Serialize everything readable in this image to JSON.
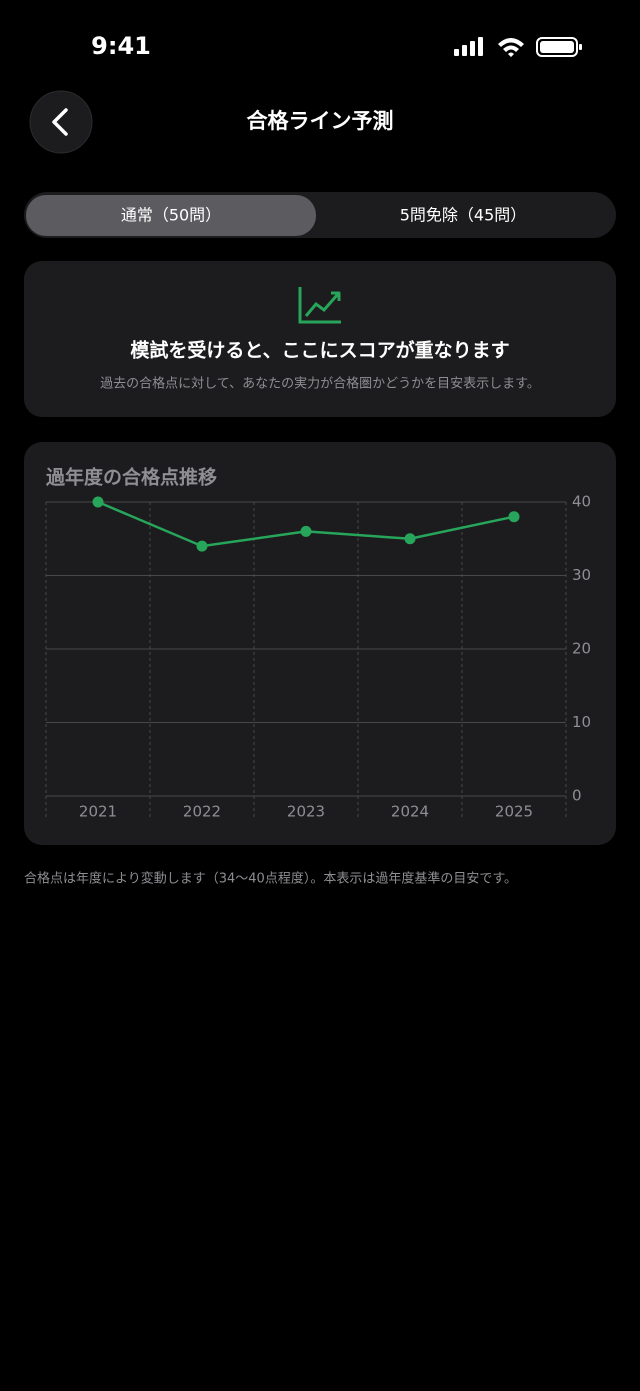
{
  "status_bar": {
    "time": "9:41"
  },
  "header": {
    "title": "合格ライン予測"
  },
  "tabs": [
    {
      "label": "通常（50問）",
      "selected": true
    },
    {
      "label": "5問免除（45問）",
      "selected": false
    }
  ],
  "info_card": {
    "heading": "模試を受けると、ここにスコアが重なります",
    "text": "過去の合格点に対して、あなたの実力が合格圏かどうかを目安表示します。"
  },
  "chart_data": {
    "type": "line",
    "title": "過年度の合格点推移",
    "categories": [
      "2021",
      "2022",
      "2023",
      "2024",
      "2025"
    ],
    "values": [
      40,
      34,
      36,
      35,
      38
    ],
    "color": "#27a55a",
    "ylim": [
      0,
      40
    ],
    "yticks": [
      0,
      10,
      20,
      30,
      40
    ],
    "grid": true
  },
  "footnote": "合格点は年度により変動します（34〜40点程度）。本表示は過年度基準の目安です。"
}
